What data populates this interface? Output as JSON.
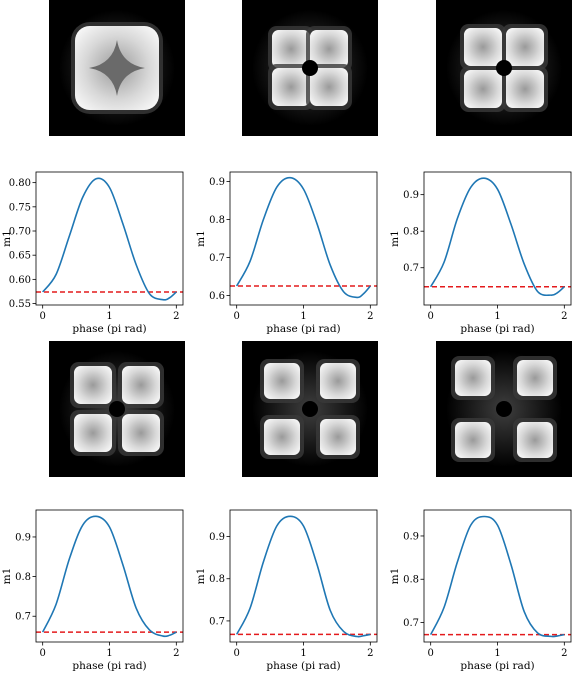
{
  "colors": {
    "curve": "#1f77b4",
    "reference": "#e41a1c",
    "image_background": "#000000",
    "highlight": "#ffffff"
  },
  "images": [
    {
      "pattern": "single-square-with-star-hole"
    },
    {
      "pattern": "four-lobes-tight"
    },
    {
      "pattern": "four-lobes-small-gap"
    },
    {
      "pattern": "four-lobes-medium-gap"
    },
    {
      "pattern": "four-lobes-wider-gap"
    },
    {
      "pattern": "four-lobes-widest-gap"
    }
  ],
  "chart_data": [
    {
      "type": "line",
      "xlabel": "phase (pi rad)",
      "ylabel": "m1",
      "xlim": [
        -0.1,
        2.1
      ],
      "ylim": [
        0.547,
        0.822
      ],
      "xticks": [
        "0",
        "1",
        "2"
      ],
      "yticks": [
        "0.55",
        "0.60",
        "0.65",
        "0.70",
        "0.75",
        "0.80"
      ],
      "series": [
        {
          "x": [
            0.0,
            0.2,
            0.4,
            0.6,
            0.8,
            1.0,
            1.2,
            1.4,
            1.6,
            1.8,
            1.9,
            2.0
          ],
          "y": [
            0.574,
            0.61,
            0.69,
            0.77,
            0.808,
            0.79,
            0.715,
            0.63,
            0.57,
            0.558,
            0.562,
            0.574
          ]
        }
      ],
      "reference_line": 0.574
    },
    {
      "type": "line",
      "xlabel": "phase (pi rad)",
      "ylabel": "m1",
      "xlim": [
        -0.1,
        2.1
      ],
      "ylim": [
        0.575,
        0.925
      ],
      "xticks": [
        "0",
        "1",
        "2"
      ],
      "yticks": [
        "0.6",
        "0.7",
        "0.8",
        "0.9"
      ],
      "series": [
        {
          "x": [
            0.0,
            0.2,
            0.4,
            0.6,
            0.8,
            1.0,
            1.2,
            1.4,
            1.6,
            1.8,
            1.9,
            2.0
          ],
          "y": [
            0.625,
            0.69,
            0.8,
            0.885,
            0.91,
            0.88,
            0.79,
            0.68,
            0.61,
            0.595,
            0.605,
            0.625
          ]
        }
      ],
      "reference_line": 0.625
    },
    {
      "type": "line",
      "xlabel": "phase (pi rad)",
      "ylabel": "m1",
      "xlim": [
        -0.1,
        2.1
      ],
      "ylim": [
        0.598,
        0.962
      ],
      "xticks": [
        "0",
        "1",
        "2"
      ],
      "yticks": [
        "0.7",
        "0.8",
        "0.9"
      ],
      "series": [
        {
          "x": [
            0.0,
            0.2,
            0.4,
            0.6,
            0.8,
            1.0,
            1.2,
            1.4,
            1.6,
            1.8,
            1.9,
            2.0
          ],
          "y": [
            0.648,
            0.715,
            0.835,
            0.92,
            0.945,
            0.915,
            0.82,
            0.71,
            0.635,
            0.625,
            0.632,
            0.648
          ]
        }
      ],
      "reference_line": 0.648
    },
    {
      "type": "line",
      "xlabel": "phase (pi rad)",
      "ylabel": "m1",
      "xlim": [
        -0.1,
        2.1
      ],
      "ylim": [
        0.635,
        0.968
      ],
      "xticks": [
        "0",
        "1",
        "2"
      ],
      "yticks": [
        "0.7",
        "0.8",
        "0.9"
      ],
      "series": [
        {
          "x": [
            0.0,
            0.2,
            0.4,
            0.6,
            0.8,
            1.0,
            1.2,
            1.4,
            1.6,
            1.8,
            1.9,
            2.0
          ],
          "y": [
            0.66,
            0.73,
            0.845,
            0.93,
            0.952,
            0.925,
            0.83,
            0.72,
            0.665,
            0.65,
            0.652,
            0.66
          ]
        }
      ],
      "reference_line": 0.66
    },
    {
      "type": "line",
      "xlabel": "phase (pi rad)",
      "ylabel": "m1",
      "xlim": [
        -0.1,
        2.1
      ],
      "ylim": [
        0.65,
        0.963
      ],
      "xticks": [
        "0",
        "1",
        "2"
      ],
      "yticks": [
        "0.7",
        "0.8",
        "0.9"
      ],
      "series": [
        {
          "x": [
            0.0,
            0.2,
            0.4,
            0.6,
            0.8,
            1.0,
            1.2,
            1.4,
            1.6,
            1.8,
            1.9,
            2.0
          ],
          "y": [
            0.668,
            0.73,
            0.84,
            0.925,
            0.948,
            0.925,
            0.835,
            0.725,
            0.675,
            0.663,
            0.665,
            0.668
          ]
        }
      ],
      "reference_line": 0.668
    },
    {
      "type": "line",
      "xlabel": "phase (pi rad)",
      "ylabel": "m1",
      "xlim": [
        -0.1,
        2.1
      ],
      "ylim": [
        0.655,
        0.96
      ],
      "xticks": [
        "0",
        "1",
        "2"
      ],
      "yticks": [
        "0.7",
        "0.8",
        "0.9"
      ],
      "series": [
        {
          "x": [
            0.0,
            0.2,
            0.4,
            0.6,
            0.8,
            1.0,
            1.2,
            1.4,
            1.6,
            1.8,
            1.9,
            2.0
          ],
          "y": [
            0.672,
            0.735,
            0.84,
            0.925,
            0.945,
            0.925,
            0.835,
            0.725,
            0.676,
            0.668,
            0.669,
            0.672
          ]
        }
      ],
      "reference_line": 0.672
    }
  ]
}
